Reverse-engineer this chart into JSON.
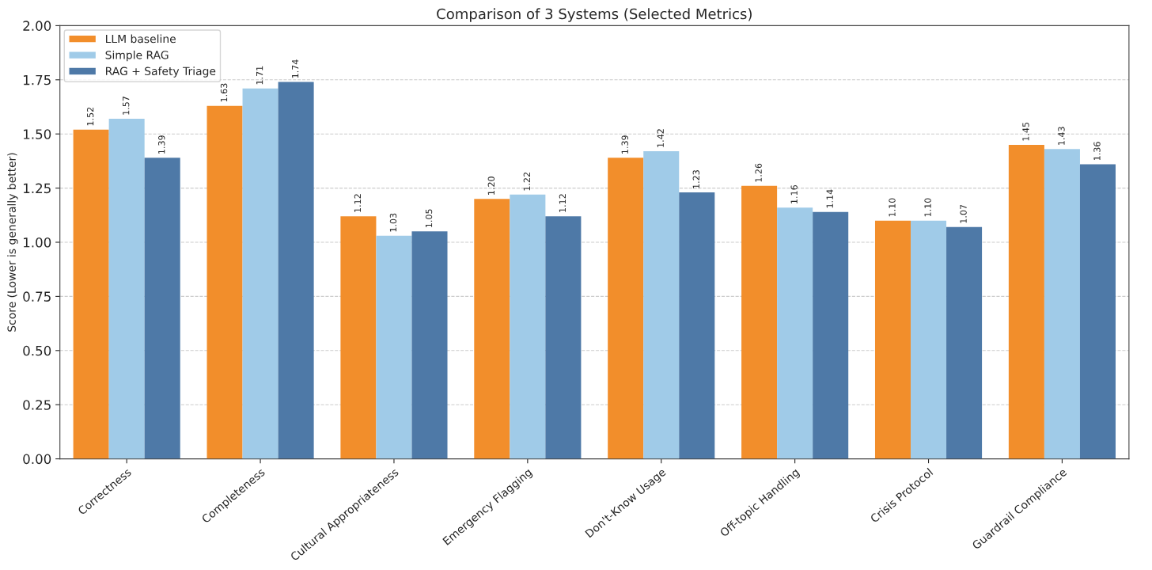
{
  "chart_data": {
    "type": "bar",
    "title": "Comparison of 3 Systems (Selected Metrics)",
    "ylabel": "Score (Lower is generally better)",
    "categories": [
      "Correctness",
      "Completeness",
      "Cultural Appropriateness",
      "Emergency Flagging",
      "Don't-Know Usage",
      "Off-topic Handling",
      "Crisis Protocol",
      "Guardrail Compliance"
    ],
    "series": [
      {
        "name": "LLM baseline",
        "color": "#f28e2b",
        "values": [
          1.52,
          1.63,
          1.12,
          1.2,
          1.39,
          1.26,
          1.1,
          1.45
        ],
        "value_labels": [
          "1.52",
          "1.63",
          "1.12",
          "1.20",
          "1.39",
          "1.26",
          "1.10",
          "1.45"
        ]
      },
      {
        "name": "Simple RAG",
        "color": "#a0cbe8",
        "values": [
          1.57,
          1.71,
          1.03,
          1.22,
          1.42,
          1.16,
          1.1,
          1.43
        ],
        "value_labels": [
          "1.57",
          "1.71",
          "1.03",
          "1.22",
          "1.42",
          "1.16",
          "1.10",
          "1.43"
        ]
      },
      {
        "name": "RAG + Safety Triage",
        "color": "#4e79a7",
        "values": [
          1.39,
          1.74,
          1.05,
          1.12,
          1.23,
          1.14,
          1.07,
          1.36
        ],
        "value_labels": [
          "1.39",
          "1.74",
          "1.05",
          "1.12",
          "1.23",
          "1.14",
          "1.07",
          "1.36"
        ]
      }
    ],
    "ylim": [
      0,
      2.0
    ],
    "yticks": [
      {
        "value": 0,
        "label": "0.00"
      },
      {
        "value": 0.25,
        "label": "0.25"
      },
      {
        "value": 0.5,
        "label": "0.50"
      },
      {
        "value": 0.75,
        "label": "0.75"
      },
      {
        "value": 1.0,
        "label": "1.00"
      },
      {
        "value": 1.25,
        "label": "1.25"
      },
      {
        "value": 1.5,
        "label": "1.50"
      },
      {
        "value": 1.75,
        "label": "1.75"
      },
      {
        "value": 2.0,
        "label": "2.00"
      }
    ],
    "grid": "y",
    "legend": "top left"
  }
}
